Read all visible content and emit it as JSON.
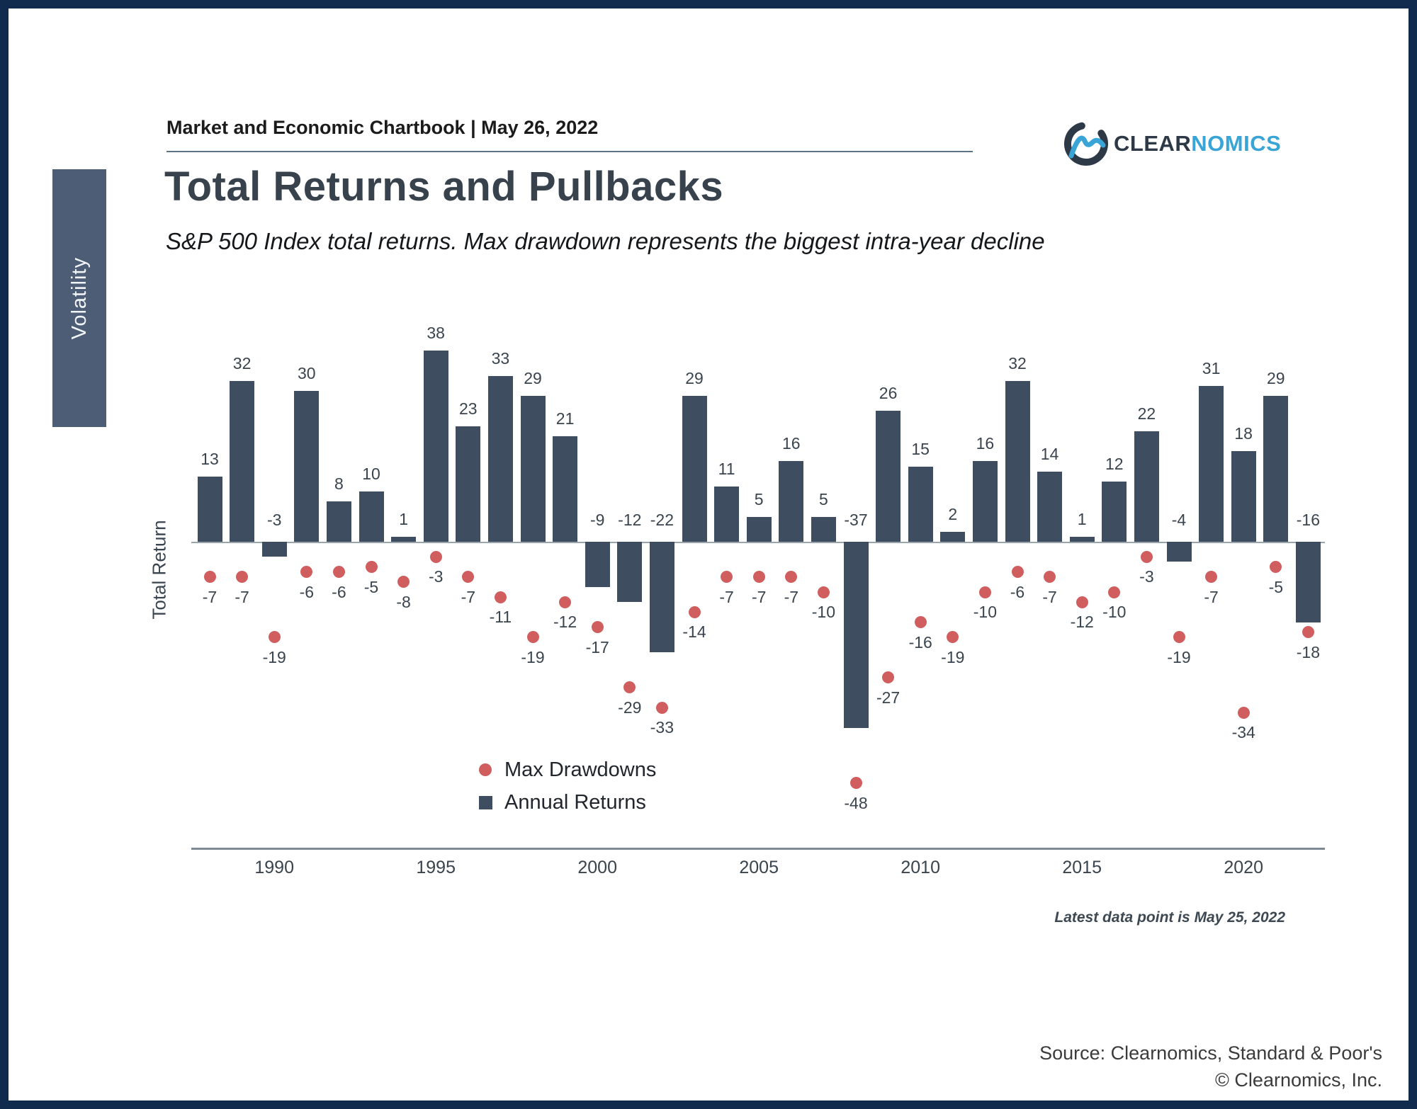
{
  "page": {
    "eyebrow": "Market and Economic Chartbook | May 26, 2022",
    "title": "Total Returns and Pullbacks",
    "subtitle": "S&P 500 Index total returns. Max drawdown represents the biggest intra-year decline",
    "sidebar_tab": "Volatility",
    "note": "Latest data point is May 25, 2022",
    "source_line1": "Source: Clearnomics, Standard & Poor's",
    "source_line2": "© Clearnomics, Inc.",
    "logo": {
      "brand_dark": "CLEAR",
      "brand_light": "NOMICS"
    }
  },
  "colors": {
    "frame": "#102b4d",
    "bar": "#3e4e60",
    "dot": "#d05e5e",
    "sidebar_tab": "#4d5d76",
    "logo_blue": "#39a5d7",
    "logo_dark": "#2e3947"
  },
  "chart_data": {
    "type": "bar",
    "title": "Total Returns and Pullbacks",
    "subtitle": "S&P 500 Index total returns. Max drawdown represents the biggest intra-year decline",
    "xlabel": "",
    "ylabel": "Total Return",
    "grid": false,
    "legend_position": "inside-bottom-left",
    "ylim": [
      -52,
      42
    ],
    "x": [
      1988,
      1989,
      1990,
      1991,
      1992,
      1993,
      1994,
      1995,
      1996,
      1997,
      1998,
      1999,
      2000,
      2001,
      2002,
      2003,
      2004,
      2005,
      2006,
      2007,
      2008,
      2009,
      2010,
      2011,
      2012,
      2013,
      2014,
      2015,
      2016,
      2017,
      2018,
      2019,
      2020,
      2021,
      2022
    ],
    "x_tick_labels": [
      "1990",
      "1995",
      "2000",
      "2005",
      "2010",
      "2015",
      "2020"
    ],
    "series": [
      {
        "name": "Annual Returns",
        "type": "bar",
        "color": "#3e4e60",
        "values": [
          13,
          32,
          -3,
          30,
          8,
          10,
          1,
          38,
          23,
          33,
          29,
          21,
          -9,
          -12,
          -22,
          29,
          11,
          5,
          16,
          5,
          -37,
          26,
          15,
          2,
          16,
          32,
          14,
          1,
          12,
          22,
          -4,
          31,
          18,
          29,
          -16
        ]
      },
      {
        "name": "Max Drawdowns",
        "type": "scatter",
        "color": "#d05e5e",
        "values": [
          -7,
          -7,
          -19,
          -6,
          -6,
          -5,
          -8,
          -3,
          -7,
          -11,
          -19,
          -12,
          -17,
          -29,
          -33,
          -14,
          -7,
          -7,
          -7,
          -10,
          -48,
          -27,
          -16,
          -19,
          -10,
          -6,
          -7,
          -12,
          -10,
          -3,
          -19,
          -7,
          -34,
          -5,
          -18
        ]
      }
    ],
    "note": "Latest data point is May 25, 2022"
  }
}
